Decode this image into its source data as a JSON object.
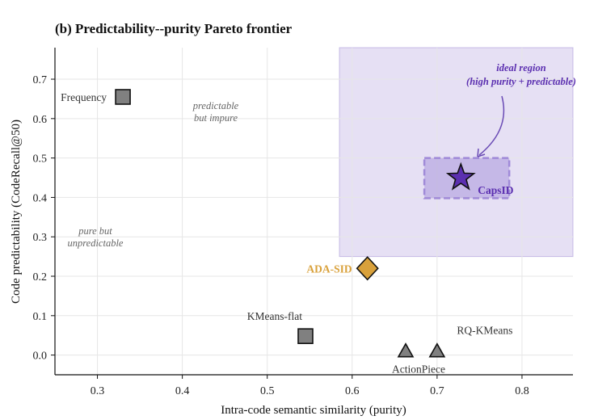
{
  "chart_data": {
    "type": "scatter",
    "title": "(b) Predictability--purity Pareto frontier",
    "xlabel": "Intra-code semantic similarity (purity)",
    "ylabel": "Code predictability (CodeRecall@50)",
    "xlim": [
      0.25,
      0.86
    ],
    "ylim": [
      -0.05,
      0.78
    ],
    "xticks": [
      0.3,
      0.4,
      0.5,
      0.6,
      0.7,
      0.8
    ],
    "yticks": [
      0.0,
      0.1,
      0.2,
      0.3,
      0.4,
      0.5,
      0.6,
      0.7
    ],
    "xtick_labels": [
      "0.3",
      "0.4",
      "0.5",
      "0.6",
      "0.7",
      "0.8"
    ],
    "ytick_labels": [
      "0.0",
      "0.1",
      "0.2",
      "0.3",
      "0.4",
      "0.5",
      "0.6",
      "0.7"
    ],
    "grid": true,
    "points": [
      {
        "label": "Frequency",
        "x": 0.33,
        "y": 0.655,
        "marker": "square",
        "color": "#808080"
      },
      {
        "label": "KMeans-flat",
        "x": 0.545,
        "y": 0.048,
        "marker": "square",
        "color": "#808080"
      },
      {
        "label": "ADA-SID",
        "x": 0.618,
        "y": 0.22,
        "marker": "diamond",
        "color": "#d9a13b"
      },
      {
        "label": "ActionPiece",
        "x": 0.663,
        "y": 0.008,
        "marker": "triangle",
        "color": "#808080"
      },
      {
        "label": "RQ-KMeans",
        "x": 0.7,
        "y": 0.008,
        "marker": "triangle",
        "color": "#808080"
      },
      {
        "label": "CapsID",
        "x": 0.728,
        "y": 0.45,
        "marker": "star",
        "color": "#5b2fb0"
      }
    ],
    "shaded_region": {
      "x": [
        0.585,
        0.86
      ],
      "y": [
        0.25,
        0.78
      ],
      "color": "#b7a6e0"
    },
    "highlight_box": {
      "x": [
        0.685,
        0.785
      ],
      "y": [
        0.398,
        0.5
      ],
      "color": "#5b2fb0"
    },
    "annotations": {
      "ideal_line1": "ideal region",
      "ideal_line2": "(high purity + predictable)",
      "pred_impure_line1": "predictable",
      "pred_impure_line2": "but impure",
      "pure_unpred_line1": "pure but",
      "pure_unpred_line2": "unpredictable"
    }
  }
}
